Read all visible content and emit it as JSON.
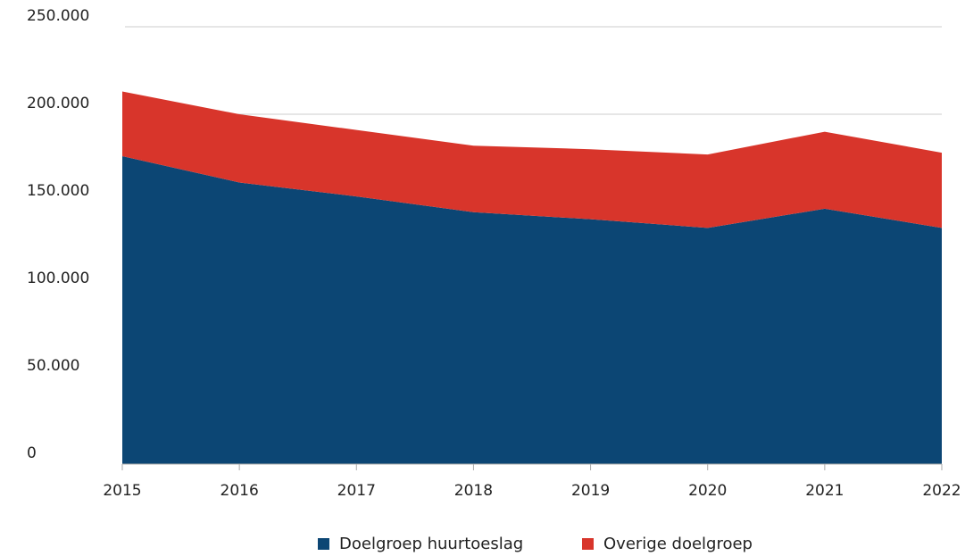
{
  "chart_data": {
    "type": "stacked_area",
    "categories": [
      "2015",
      "2016",
      "2017",
      "2018",
      "2019",
      "2020",
      "2021",
      "2022"
    ],
    "series": [
      {
        "name": "Doelgroep huurtoeslag",
        "color": "#0c4674",
        "values": [
          176000,
          161000,
          153000,
          144000,
          140000,
          135000,
          146000,
          135000
        ]
      },
      {
        "name": "Overige doelgroep",
        "color": "#d8352b",
        "values": [
          37000,
          39000,
          38000,
          38000,
          40000,
          42000,
          44000,
          43000
        ]
      }
    ],
    "ylim": [
      0,
      250000
    ],
    "yticks": [
      0,
      {
        "value": 50000,
        "label": "50.000"
      },
      {
        "value": 100000,
        "label": "100.000"
      },
      {
        "value": 150000,
        "label": "150.000"
      },
      {
        "value": 200000,
        "label": "200.000"
      },
      {
        "value": 250000,
        "label": "250.000"
      }
    ],
    "grid": true,
    "legend": "bottom"
  }
}
